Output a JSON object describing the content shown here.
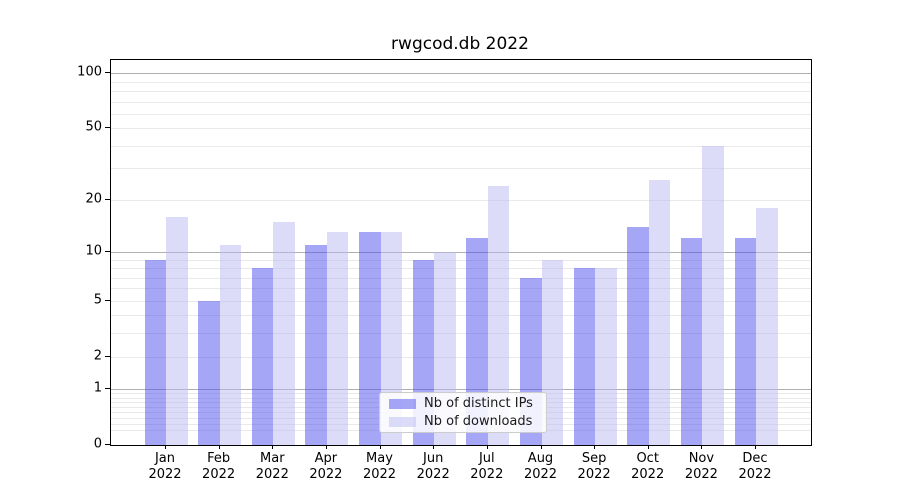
{
  "title": "rwgcod.db 2022",
  "chart_data": {
    "type": "bar",
    "title": "rwgcod.db 2022",
    "categories": [
      "Jan 2022",
      "Feb 2022",
      "Mar 2022",
      "Apr 2022",
      "May 2022",
      "Jun 2022",
      "Jul 2022",
      "Aug 2022",
      "Sep 2022",
      "Oct 2022",
      "Nov 2022",
      "Dec 2022"
    ],
    "series": [
      {
        "name": "Nb of distinct IPs",
        "color": "rgba(77,77,239,0.5)",
        "values": [
          9,
          5,
          8,
          11,
          13,
          9,
          12,
          7,
          8,
          14,
          12,
          12
        ]
      },
      {
        "name": "Nb of downloads",
        "color": "rgba(185,185,243,0.5)",
        "values": [
          16,
          11,
          15,
          13,
          13,
          10,
          24,
          9,
          8,
          26,
          40,
          18
        ]
      }
    ],
    "xlabel": "",
    "ylabel": "",
    "y_scale": "log1p",
    "y_ticks": [
      0,
      1,
      2,
      5,
      10,
      20,
      50,
      100
    ],
    "y_major_gridlines": [
      1,
      10,
      100
    ],
    "y_minor_gridlines": [
      0.2,
      0.3,
      0.4,
      0.5,
      0.6,
      0.7,
      0.8,
      0.9,
      2,
      3,
      4,
      5,
      6,
      7,
      8,
      9,
      20,
      30,
      40,
      50,
      60,
      70,
      80,
      90
    ],
    "ylim": [
      0,
      118
    ],
    "grid": true,
    "legend_position": "lower center",
    "colors": {
      "major_grid": "#b0b0b0",
      "minor_grid": "#e9e9e9",
      "axis": "#000000",
      "background": "#ffffff",
      "bar_ips_composite": "#a6a6f7",
      "bar_downloads_composite": "#dcdcf9"
    }
  }
}
